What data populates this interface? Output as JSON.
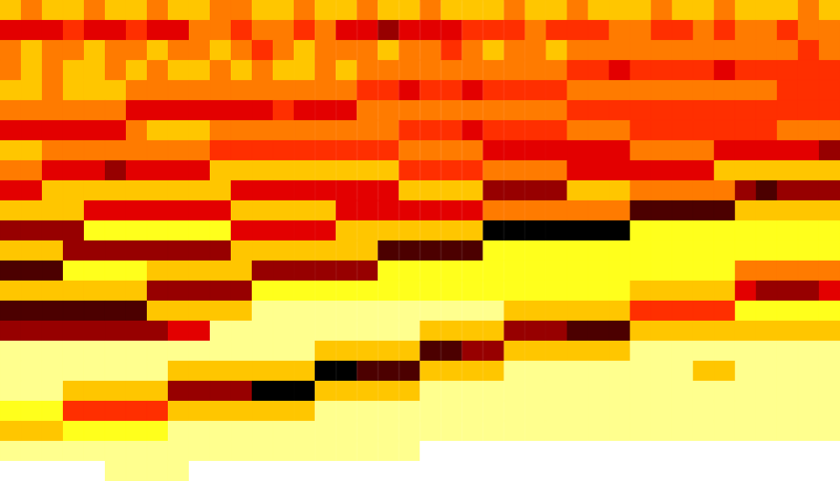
{
  "chart_data": {
    "type": "heatmap",
    "tick_labels": false,
    "zlim": [
      0,
      9
    ],
    "cells": [
      [
        3,
        4,
        3,
        3,
        4,
        3,
        3,
        4,
        3,
        3,
        4,
        4,
        3,
        3,
        4,
        3,
        3,
        4,
        3,
        3,
        4,
        3,
        3,
        3,
        4,
        3,
        3,
        4,
        3,
        3,
        3,
        4,
        3,
        3,
        4,
        3,
        3,
        3,
        4,
        3
      ],
      [
        6,
        6,
        6,
        5,
        6,
        6,
        5,
        6,
        6,
        4,
        4,
        5,
        4,
        4,
        5,
        4,
        6,
        6,
        7,
        6,
        6,
        6,
        5,
        5,
        5,
        4,
        5,
        5,
        5,
        4,
        4,
        5,
        5,
        4,
        5,
        4,
        4,
        5,
        4,
        4
      ],
      [
        4,
        3,
        4,
        4,
        3,
        4,
        4,
        3,
        4,
        4,
        3,
        4,
        5,
        4,
        3,
        4,
        4,
        4,
        3,
        4,
        4,
        5,
        4,
        3,
        4,
        4,
        3,
        4,
        4,
        4,
        4,
        4,
        4,
        4,
        4,
        4,
        4,
        4,
        5,
        4
      ],
      [
        4,
        3,
        4,
        3,
        3,
        4,
        3,
        4,
        3,
        3,
        4,
        3,
        4,
        3,
        3,
        4,
        3,
        4,
        4,
        4,
        4,
        4,
        4,
        4,
        4,
        4,
        4,
        5,
        5,
        6,
        5,
        5,
        5,
        5,
        6,
        5,
        5,
        5,
        5,
        5
      ],
      [
        3,
        3,
        4,
        3,
        3,
        3,
        4,
        4,
        4,
        4,
        4,
        4,
        4,
        4,
        4,
        4,
        4,
        5,
        5,
        6,
        5,
        5,
        6,
        5,
        5,
        5,
        5,
        4,
        4,
        4,
        4,
        4,
        4,
        4,
        4,
        4,
        4,
        5,
        5,
        5
      ],
      [
        4,
        4,
        4,
        4,
        4,
        4,
        6,
        6,
        6,
        6,
        6,
        6,
        6,
        5,
        6,
        6,
        6,
        4,
        4,
        4,
        4,
        4,
        4,
        4,
        4,
        4,
        4,
        5,
        5,
        5,
        5,
        5,
        5,
        5,
        5,
        5,
        5,
        5,
        5,
        5
      ],
      [
        6,
        6,
        6,
        6,
        6,
        6,
        4,
        3,
        3,
        3,
        4,
        4,
        4,
        4,
        4,
        4,
        4,
        4,
        4,
        5,
        5,
        5,
        6,
        5,
        5,
        5,
        5,
        4,
        4,
        4,
        5,
        5,
        5,
        5,
        5,
        5,
        5,
        4,
        4,
        4
      ],
      [
        3,
        3,
        4,
        4,
        4,
        4,
        4,
        4,
        4,
        4,
        5,
        5,
        5,
        5,
        5,
        5,
        5,
        5,
        5,
        4,
        4,
        4,
        4,
        6,
        6,
        6,
        6,
        6,
        6,
        6,
        4,
        4,
        4,
        4,
        6,
        6,
        6,
        6,
        6,
        7
      ],
      [
        4,
        4,
        6,
        6,
        6,
        7,
        6,
        6,
        6,
        6,
        3,
        3,
        3,
        3,
        3,
        3,
        3,
        3,
        3,
        5,
        5,
        5,
        5,
        4,
        4,
        4,
        4,
        6,
        6,
        6,
        6,
        6,
        6,
        6,
        3,
        3,
        3,
        3,
        3,
        3
      ],
      [
        6,
        6,
        3,
        3,
        3,
        3,
        3,
        3,
        3,
        3,
        3,
        6,
        6,
        6,
        6,
        6,
        6,
        6,
        6,
        3,
        3,
        3,
        3,
        7,
        7,
        7,
        7,
        3,
        3,
        3,
        4,
        4,
        4,
        4,
        4,
        7,
        8,
        7,
        7,
        7
      ],
      [
        3,
        3,
        3,
        3,
        6,
        6,
        6,
        6,
        6,
        6,
        6,
        3,
        3,
        3,
        3,
        3,
        6,
        6,
        6,
        6,
        6,
        6,
        6,
        4,
        4,
        4,
        4,
        4,
        4,
        4,
        8,
        8,
        8,
        8,
        8,
        3,
        3,
        3,
        3,
        3
      ],
      [
        7,
        7,
        7,
        7,
        2,
        2,
        2,
        2,
        2,
        2,
        2,
        6,
        6,
        6,
        6,
        6,
        3,
        3,
        3,
        3,
        3,
        3,
        3,
        9,
        9,
        9,
        9,
        9,
        9,
        9,
        2,
        2,
        2,
        2,
        2,
        2,
        2,
        2,
        2,
        2
      ],
      [
        3,
        3,
        3,
        7,
        7,
        7,
        7,
        7,
        7,
        7,
        7,
        3,
        3,
        3,
        3,
        3,
        3,
        3,
        8,
        8,
        8,
        8,
        8,
        2,
        2,
        2,
        2,
        2,
        2,
        2,
        2,
        2,
        2,
        2,
        2,
        2,
        2,
        2,
        2,
        2
      ],
      [
        8,
        8,
        8,
        2,
        2,
        2,
        2,
        3,
        3,
        3,
        3,
        3,
        7,
        7,
        7,
        7,
        7,
        7,
        2,
        2,
        2,
        2,
        2,
        2,
        2,
        2,
        2,
        2,
        2,
        2,
        2,
        2,
        2,
        2,
        2,
        4,
        4,
        4,
        4,
        4
      ],
      [
        3,
        3,
        3,
        3,
        3,
        3,
        3,
        7,
        7,
        7,
        7,
        7,
        2,
        2,
        2,
        2,
        2,
        2,
        2,
        2,
        2,
        2,
        2,
        2,
        2,
        2,
        2,
        2,
        2,
        2,
        3,
        3,
        3,
        3,
        3,
        6,
        7,
        7,
        7,
        6
      ],
      [
        8,
        8,
        8,
        8,
        8,
        8,
        8,
        3,
        3,
        3,
        3,
        3,
        1,
        1,
        1,
        1,
        1,
        1,
        1,
        1,
        1,
        1,
        1,
        1,
        3,
        3,
        3,
        3,
        3,
        3,
        5,
        5,
        5,
        5,
        5,
        2,
        2,
        2,
        2,
        2
      ],
      [
        7,
        7,
        7,
        7,
        7,
        7,
        7,
        7,
        6,
        6,
        1,
        1,
        1,
        1,
        1,
        1,
        1,
        1,
        1,
        1,
        3,
        3,
        3,
        3,
        7,
        7,
        7,
        8,
        8,
        8,
        3,
        3,
        3,
        3,
        3,
        3,
        3,
        3,
        3,
        3
      ],
      [
        1,
        1,
        1,
        1,
        1,
        1,
        1,
        1,
        1,
        1,
        1,
        1,
        1,
        1,
        1,
        3,
        3,
        3,
        3,
        3,
        8,
        8,
        7,
        7,
        3,
        3,
        3,
        3,
        3,
        3,
        1,
        1,
        1,
        1,
        1,
        1,
        1,
        1,
        1,
        1
      ],
      [
        1,
        1,
        1,
        1,
        1,
        1,
        1,
        1,
        3,
        3,
        3,
        3,
        3,
        3,
        3,
        9,
        9,
        8,
        8,
        8,
        3,
        3,
        3,
        3,
        1,
        1,
        1,
        1,
        1,
        1,
        1,
        1,
        1,
        3,
        3,
        1,
        1,
        1,
        1,
        1
      ],
      [
        1,
        1,
        1,
        3,
        3,
        3,
        3,
        3,
        7,
        7,
        7,
        7,
        9,
        9,
        9,
        3,
        3,
        3,
        3,
        3,
        1,
        1,
        1,
        1,
        1,
        1,
        1,
        1,
        1,
        1,
        1,
        1,
        1,
        1,
        1,
        1,
        1,
        1,
        1,
        1
      ],
      [
        2,
        2,
        2,
        5,
        5,
        5,
        5,
        5,
        3,
        3,
        3,
        3,
        3,
        3,
        3,
        1,
        1,
        1,
        1,
        1,
        1,
        1,
        1,
        1,
        1,
        1,
        1,
        1,
        1,
        1,
        1,
        1,
        1,
        1,
        1,
        1,
        1,
        1,
        1,
        1
      ],
      [
        3,
        3,
        3,
        2,
        2,
        2,
        2,
        2,
        1,
        1,
        1,
        1,
        1,
        1,
        1,
        1,
        1,
        1,
        1,
        1,
        1,
        1,
        1,
        1,
        1,
        1,
        1,
        1,
        1,
        1,
        1,
        1,
        1,
        1,
        1,
        1,
        1,
        1,
        1,
        1
      ],
      [
        1,
        1,
        1,
        1,
        1,
        1,
        1,
        1,
        1,
        1,
        1,
        1,
        1,
        1,
        1,
        1,
        1,
        1,
        1,
        1,
        0,
        0,
        0,
        0,
        0,
        0,
        0,
        0,
        0,
        0,
        0,
        0,
        0,
        0,
        0,
        0,
        0,
        0,
        0,
        0
      ],
      [
        0,
        0,
        0,
        0,
        0,
        1,
        1,
        1,
        1,
        0,
        0,
        0,
        0,
        0,
        0,
        0,
        0,
        0,
        0,
        0,
        0,
        0,
        0,
        0,
        0,
        0,
        0,
        0,
        0,
        0,
        0,
        0,
        0,
        0,
        0,
        0,
        0,
        0,
        0,
        0
      ]
    ]
  }
}
